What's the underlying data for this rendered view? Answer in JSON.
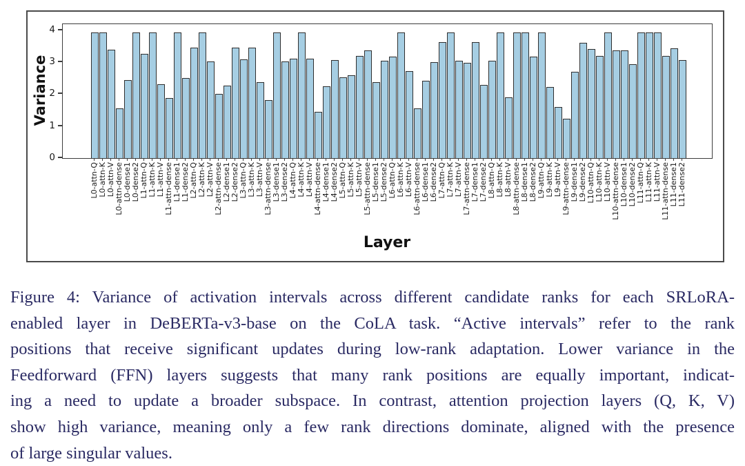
{
  "figure": {
    "caption_color": "#2a2a63",
    "caption_lines": [
      "Figure 4:  Variance of activation intervals across different candidate ranks for each SRLoRA-",
      "enabled layer in DeBERTa-v3-base on the CoLA task.  “Active intervals” refer to the rank",
      "positions that receive significant updates during low-rank adaptation.  Lower variance in the",
      "Feedforward (FFN) layers suggests that many rank positions are equally important, indicat-",
      "ing a need to update a broader subspace.  In contrast, attention projection layers (Q, K, V)",
      "show high variance, meaning only a few rank directions dominate, aligned with the presence",
      "of large singular values."
    ]
  },
  "chart_data": {
    "type": "bar",
    "title": "",
    "xlabel": "Layer",
    "ylabel": "Variance",
    "ylim": [
      0,
      4.19
    ],
    "yticks": [
      0,
      1,
      2,
      3,
      4
    ],
    "grid": false,
    "legend": null,
    "bar_color": "#a6cee3",
    "bar_edge_color": "#2e2e2e",
    "frame_border_color": "#4a4a4a",
    "categories": [
      "L0-attn-Q",
      "L0-attn-K",
      "L0-attn-V",
      "L0-attn-dense",
      "L0-dense1",
      "L0-dense2",
      "L1-attn-Q",
      "L1-attn-K",
      "L1-attn-V",
      "L1-attn-dense",
      "L1-dense1",
      "L1-dense2",
      "L2-attn-Q",
      "L2-attn-K",
      "L2-attn-V",
      "L2-attn-dense",
      "L2-dense1",
      "L2-dense2",
      "L3-attn-Q",
      "L3-attn-K",
      "L3-attn-V",
      "L3-attn-dense",
      "L3-dense1",
      "L3-dense2",
      "L4-attn-Q",
      "L4-attn-K",
      "L4-attn-V",
      "L4-attn-dense",
      "L4-dense1",
      "L4-dense2",
      "L5-attn-Q",
      "L5-attn-K",
      "L5-attn-V",
      "L5-attn-dense",
      "L5-dense1",
      "L5-dense2",
      "L6-attn-Q",
      "L6-attn-K",
      "L6-attn-V",
      "L6-attn-dense",
      "L6-dense1",
      "L6-dense2",
      "L7-attn-Q",
      "L7-attn-K",
      "L7-attn-V",
      "L7-attn-dense",
      "L7-dense1",
      "L7-dense2",
      "L8-attn-Q",
      "L8-attn-K",
      "L8-attn-V",
      "L8-attn-dense",
      "L8-dense1",
      "L8-dense2",
      "L9-attn-Q",
      "L9-attn-K",
      "L9-attn-V",
      "L9-attn-dense",
      "L9-dense1",
      "L9-dense2",
      "L10-attn-Q",
      "L10-attn-K",
      "L10-attn-V",
      "L10-attn-dense",
      "L10-dense1",
      "L10-dense2",
      "L11-attn-Q",
      "L11-attn-K",
      "L11-attn-V",
      "L11-attn-dense",
      "L11-dense1",
      "L11-dense2"
    ],
    "values": [
      3.93,
      3.93,
      3.39,
      1.56,
      2.43,
      3.93,
      3.26,
      3.93,
      2.31,
      1.87,
      3.93,
      2.51,
      3.45,
      3.93,
      3.02,
      2.0,
      2.26,
      3.45,
      3.08,
      3.45,
      2.38,
      1.81,
      3.93,
      3.02,
      3.12,
      3.93,
      3.12,
      1.45,
      2.24,
      3.07,
      2.52,
      2.6,
      3.19,
      3.37,
      2.37,
      3.05,
      3.18,
      3.93,
      2.73,
      1.55,
      2.42,
      3.0,
      3.62,
      3.93,
      3.05,
      2.97,
      3.62,
      2.29,
      3.05,
      3.93,
      1.9,
      3.93,
      3.93,
      3.18,
      3.93,
      2.23,
      1.6,
      1.23,
      2.69,
      3.6,
      3.42,
      3.19,
      3.93,
      3.37,
      3.36,
      2.93,
      3.93,
      3.93,
      3.93,
      3.19,
      3.44,
      3.06
    ]
  }
}
